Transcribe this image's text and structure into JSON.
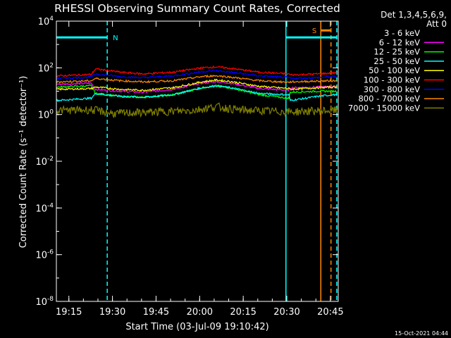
{
  "chart_data": {
    "type": "line",
    "title": "RHESSI Observing Summary Count Rates, Corrected",
    "xlabel": "Start Time (03-Jul-09 19:10:42)",
    "ylabel": "Corrected Count Rate (s⁻¹ detector⁻¹)",
    "yscale": "log",
    "ylim": [
      1e-08,
      10000
    ],
    "xlim_minutes": [
      0,
      97
    ],
    "x_ticks": [
      {
        "label": "19:15",
        "minute": 4.3
      },
      {
        "label": "19:30",
        "minute": 19.3
      },
      {
        "label": "19:45",
        "minute": 34.3
      },
      {
        "label": "20:00",
        "minute": 49.3
      },
      {
        "label": "20:15",
        "minute": 64.3
      },
      {
        "label": "20:30",
        "minute": 79.3
      },
      {
        "label": "20:45",
        "minute": 94.3
      }
    ],
    "y_ticks": [
      {
        "base": "10",
        "exp": "4",
        "value": 10000
      },
      {
        "base": "10",
        "exp": "2",
        "value": 100
      },
      {
        "base": "10",
        "exp": "0",
        "value": 1
      },
      {
        "base": "10",
        "exp": "-2",
        "value": 0.01
      },
      {
        "base": "10",
        "exp": "-4",
        "value": 0.0001
      },
      {
        "base": "10",
        "exp": "-6",
        "value": 1e-06
      },
      {
        "base": "10",
        "exp": "-8",
        "value": 1e-08
      }
    ],
    "legend_header": [
      "Det 1,3,4,5,6,9,",
      "Att 0"
    ],
    "legend_position": "right",
    "series": [
      {
        "name": "3 - 6 keV",
        "color": "#000000",
        "points": [
          [
            0,
            18
          ],
          [
            12,
            20
          ],
          [
            13.5,
            9
          ],
          [
            22,
            7
          ],
          [
            30,
            6
          ],
          [
            40,
            8
          ],
          [
            50,
            16
          ],
          [
            55,
            19
          ],
          [
            60,
            16
          ],
          [
            70,
            9
          ],
          [
            80,
            7.5
          ],
          [
            80.5,
            10
          ],
          [
            90,
            11
          ],
          [
            95,
            12
          ]
        ]
      },
      {
        "name": "6 - 12 keV",
        "color": "#ff00ff",
        "points": [
          [
            0,
            20
          ],
          [
            12,
            22
          ],
          [
            13.5,
            12
          ],
          [
            22,
            10
          ],
          [
            30,
            9
          ],
          [
            40,
            12
          ],
          [
            50,
            22
          ],
          [
            55,
            26
          ],
          [
            60,
            22
          ],
          [
            70,
            13
          ],
          [
            80,
            11
          ],
          [
            80.5,
            14
          ],
          [
            90,
            15
          ],
          [
            95,
            16
          ]
        ]
      },
      {
        "name": "12 - 25 keV",
        "color": "#00ff00",
        "points": [
          [
            0,
            15
          ],
          [
            12,
            17
          ],
          [
            13.5,
            8
          ],
          [
            22,
            6
          ],
          [
            30,
            5.5
          ],
          [
            40,
            7
          ],
          [
            50,
            14
          ],
          [
            55,
            17
          ],
          [
            60,
            14
          ],
          [
            70,
            7
          ],
          [
            80,
            5
          ],
          [
            80.5,
            9
          ],
          [
            90,
            10
          ],
          [
            95,
            10
          ]
        ]
      },
      {
        "name": "25 - 50 keV",
        "color": "#00ffff",
        "points": [
          [
            0,
            4
          ],
          [
            12,
            5
          ],
          [
            13.5,
            8
          ],
          [
            22,
            6
          ],
          [
            30,
            5.5
          ],
          [
            40,
            7
          ],
          [
            50,
            14
          ],
          [
            55,
            17
          ],
          [
            60,
            14
          ],
          [
            70,
            8
          ],
          [
            80,
            7
          ],
          [
            80.5,
            4
          ],
          [
            90,
            6
          ],
          [
            95,
            7
          ]
        ]
      },
      {
        "name": "50 - 100 keV",
        "color": "#ffff00",
        "points": [
          [
            0,
            12
          ],
          [
            12,
            13
          ],
          [
            13.5,
            15
          ],
          [
            22,
            12
          ],
          [
            30,
            11
          ],
          [
            40,
            14
          ],
          [
            50,
            25
          ],
          [
            55,
            30
          ],
          [
            60,
            26
          ],
          [
            70,
            16
          ],
          [
            80,
            13
          ],
          [
            80.5,
            12
          ],
          [
            90,
            14
          ],
          [
            95,
            15
          ]
        ]
      },
      {
        "name": "100 - 300 keV",
        "color": "#ff0000",
        "points": [
          [
            0,
            45
          ],
          [
            12,
            52
          ],
          [
            13.5,
            90
          ],
          [
            22,
            65
          ],
          [
            30,
            55
          ],
          [
            40,
            65
          ],
          [
            50,
            100
          ],
          [
            55,
            110
          ],
          [
            60,
            95
          ],
          [
            70,
            65
          ],
          [
            80,
            55
          ],
          [
            80.5,
            50
          ],
          [
            90,
            55
          ],
          [
            95,
            60
          ]
        ]
      },
      {
        "name": "300 - 800 keV",
        "color": "#0000ff",
        "points": [
          [
            0,
            35
          ],
          [
            12,
            40
          ],
          [
            13.5,
            55
          ],
          [
            22,
            42
          ],
          [
            30,
            38
          ],
          [
            40,
            45
          ],
          [
            50,
            68
          ],
          [
            55,
            75
          ],
          [
            60,
            65
          ],
          [
            70,
            45
          ],
          [
            80,
            38
          ],
          [
            80.5,
            35
          ],
          [
            90,
            38
          ],
          [
            95,
            42
          ]
        ]
      },
      {
        "name": "800 - 7000 keV",
        "color": "#ff8800",
        "points": [
          [
            0,
            25
          ],
          [
            12,
            28
          ],
          [
            13.5,
            35
          ],
          [
            22,
            28
          ],
          [
            30,
            25
          ],
          [
            40,
            28
          ],
          [
            50,
            42
          ],
          [
            55,
            46
          ],
          [
            60,
            40
          ],
          [
            70,
            28
          ],
          [
            80,
            24
          ],
          [
            80.5,
            25
          ],
          [
            90,
            27
          ],
          [
            95,
            28
          ]
        ]
      },
      {
        "name": "7000 - 15000 keV",
        "color": "#808000",
        "points": [
          [
            0,
            1.5
          ],
          [
            12,
            1.6
          ],
          [
            20,
            1.1
          ],
          [
            47,
            1.5
          ],
          [
            55,
            2.2
          ],
          [
            62,
            1.6
          ],
          [
            80,
            1.3
          ],
          [
            95,
            1.5
          ]
        ]
      }
    ],
    "annotations": [
      {
        "label": "N",
        "color": "#00ffff",
        "start_minute": 0,
        "end_minute": 17.5,
        "level": 2000
      },
      {
        "label": "S",
        "color": "#ff8800",
        "start_minute": 91,
        "end_minute": 94.5,
        "level": 4000
      },
      {
        "label": "",
        "color": "#00ffff",
        "start_minute": 79,
        "end_minute": 96.5,
        "level": 2000
      }
    ],
    "vertical_lines": [
      {
        "minute": 17.5,
        "color": "#00ffff",
        "style": "dashed"
      },
      {
        "minute": 79,
        "color": "#00ffff",
        "style": "solid"
      },
      {
        "minute": 91,
        "color": "#ff8800",
        "style": "solid"
      },
      {
        "minute": 94.5,
        "color": "#ff8800",
        "style": "dashed"
      },
      {
        "minute": 96.5,
        "color": "#00ffff",
        "style": "dashed"
      }
    ],
    "footer": "15-Oct-2021 04:44"
  }
}
